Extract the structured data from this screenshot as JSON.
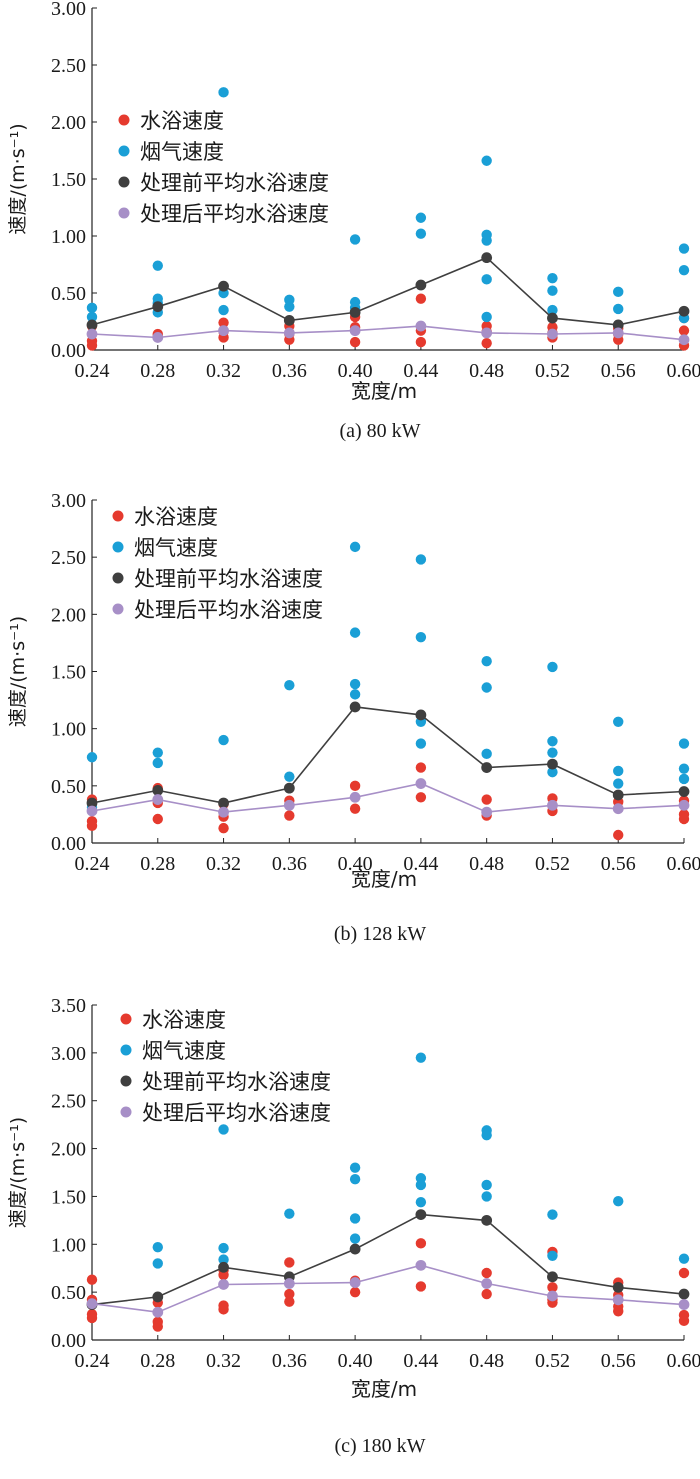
{
  "chart_data": [
    {
      "type": "scatter",
      "caption": "(a) 80 kW",
      "xlabel": "宽度/m",
      "ylabel": "速度/(m·s⁻¹)",
      "ylim": [
        0,
        3.0
      ],
      "y_ticks": [
        "0.00",
        "0.50",
        "1.00",
        "1.50",
        "2.00",
        "2.50",
        "3.00"
      ],
      "x_ticks": [
        "0.24",
        "0.28",
        "0.32",
        "0.36",
        "0.40",
        "0.44",
        "0.48",
        "0.52",
        "0.56",
        "0.60"
      ],
      "legend_placement": "top-left",
      "series": [
        {
          "name": "水浴速度",
          "kind": "scatter",
          "color": "#e53a2e",
          "points": [
            [
              0.24,
              0.21
            ],
            [
              0.24,
              0.08
            ],
            [
              0.24,
              0.04
            ],
            [
              0.28,
              0.14
            ],
            [
              0.28,
              0.12
            ],
            [
              0.32,
              0.24
            ],
            [
              0.32,
              0.16
            ],
            [
              0.32,
              0.11
            ],
            [
              0.36,
              0.21
            ],
            [
              0.36,
              0.14
            ],
            [
              0.36,
              0.09
            ],
            [
              0.4,
              0.29
            ],
            [
              0.4,
              0.2
            ],
            [
              0.4,
              0.07
            ],
            [
              0.44,
              0.45
            ],
            [
              0.44,
              0.17
            ],
            [
              0.44,
              0.07
            ],
            [
              0.48,
              0.21
            ],
            [
              0.48,
              0.16
            ],
            [
              0.48,
              0.06
            ],
            [
              0.52,
              0.2
            ],
            [
              0.52,
              0.15
            ],
            [
              0.52,
              0.11
            ],
            [
              0.56,
              0.19
            ],
            [
              0.56,
              0.14
            ],
            [
              0.56,
              0.09
            ],
            [
              0.6,
              0.28
            ],
            [
              0.6,
              0.17
            ],
            [
              0.6,
              0.04
            ]
          ]
        },
        {
          "name": "烟气速度",
          "kind": "scatter",
          "color": "#1a9fd6",
          "points": [
            [
              0.24,
              0.37
            ],
            [
              0.24,
              0.29
            ],
            [
              0.28,
              0.74
            ],
            [
              0.28,
              0.45
            ],
            [
              0.28,
              0.41
            ],
            [
              0.28,
              0.33
            ],
            [
              0.32,
              2.26
            ],
            [
              0.32,
              0.5
            ],
            [
              0.32,
              0.35
            ],
            [
              0.36,
              0.44
            ],
            [
              0.36,
              0.38
            ],
            [
              0.4,
              0.97
            ],
            [
              0.4,
              0.42
            ],
            [
              0.4,
              0.37
            ],
            [
              0.44,
              1.16
            ],
            [
              0.44,
              1.02
            ],
            [
              0.48,
              1.66
            ],
            [
              0.48,
              1.01
            ],
            [
              0.48,
              0.96
            ],
            [
              0.48,
              0.62
            ],
            [
              0.48,
              0.29
            ],
            [
              0.52,
              0.63
            ],
            [
              0.52,
              0.52
            ],
            [
              0.52,
              0.35
            ],
            [
              0.56,
              0.51
            ],
            [
              0.56,
              0.36
            ],
            [
              0.6,
              0.89
            ],
            [
              0.6,
              0.7
            ],
            [
              0.6,
              0.28
            ]
          ]
        },
        {
          "name": "处理前平均水浴速度",
          "kind": "line",
          "color": "#3f3f3f",
          "points": [
            [
              0.24,
              0.22
            ],
            [
              0.28,
              0.38
            ],
            [
              0.32,
              0.56
            ],
            [
              0.36,
              0.26
            ],
            [
              0.4,
              0.33
            ],
            [
              0.44,
              0.57
            ],
            [
              0.48,
              0.81
            ],
            [
              0.52,
              0.28
            ],
            [
              0.56,
              0.22
            ],
            [
              0.6,
              0.34
            ]
          ]
        },
        {
          "name": "处理后平均水浴速度",
          "kind": "line",
          "color": "#a78fc7",
          "points": [
            [
              0.24,
              0.14
            ],
            [
              0.28,
              0.11
            ],
            [
              0.32,
              0.17
            ],
            [
              0.36,
              0.15
            ],
            [
              0.4,
              0.17
            ],
            [
              0.44,
              0.21
            ],
            [
              0.48,
              0.15
            ],
            [
              0.52,
              0.14
            ],
            [
              0.56,
              0.15
            ],
            [
              0.6,
              0.09
            ]
          ]
        }
      ]
    },
    {
      "type": "scatter",
      "caption": "(b) 128 kW",
      "xlabel": "宽度/m",
      "ylabel": "速度/(m·s⁻¹)",
      "ylim": [
        0,
        3.0
      ],
      "y_ticks": [
        "0.00",
        "0.50",
        "1.00",
        "1.50",
        "2.00",
        "2.50",
        "3.00"
      ],
      "x_ticks": [
        "0.24",
        "0.28",
        "0.32",
        "0.36",
        "0.40",
        "0.44",
        "0.48",
        "0.52",
        "0.56",
        "0.60"
      ],
      "legend_placement": "top-left",
      "series": [
        {
          "name": "水浴速度",
          "kind": "scatter",
          "color": "#e53a2e",
          "points": [
            [
              0.24,
              0.38
            ],
            [
              0.24,
              0.19
            ],
            [
              0.24,
              0.15
            ],
            [
              0.28,
              0.48
            ],
            [
              0.28,
              0.35
            ],
            [
              0.28,
              0.21
            ],
            [
              0.32,
              0.34
            ],
            [
              0.32,
              0.23
            ],
            [
              0.32,
              0.13
            ],
            [
              0.36,
              0.37
            ],
            [
              0.36,
              0.33
            ],
            [
              0.36,
              0.24
            ],
            [
              0.4,
              0.5
            ],
            [
              0.4,
              0.3
            ],
            [
              0.44,
              0.66
            ],
            [
              0.44,
              0.4
            ],
            [
              0.48,
              0.38
            ],
            [
              0.48,
              0.24
            ],
            [
              0.52,
              0.39
            ],
            [
              0.52,
              0.28
            ],
            [
              0.56,
              0.36
            ],
            [
              0.56,
              0.3
            ],
            [
              0.56,
              0.07
            ],
            [
              0.6,
              0.37
            ],
            [
              0.6,
              0.25
            ],
            [
              0.6,
              0.21
            ]
          ]
        },
        {
          "name": "烟气速度",
          "kind": "scatter",
          "color": "#1a9fd6",
          "points": [
            [
              0.24,
              0.75
            ],
            [
              0.24,
              0.31
            ],
            [
              0.28,
              0.79
            ],
            [
              0.28,
              0.7
            ],
            [
              0.32,
              0.9
            ],
            [
              0.32,
              0.27
            ],
            [
              0.36,
              1.38
            ],
            [
              0.36,
              0.58
            ],
            [
              0.4,
              2.59
            ],
            [
              0.4,
              1.84
            ],
            [
              0.4,
              1.39
            ],
            [
              0.4,
              1.3
            ],
            [
              0.44,
              2.48
            ],
            [
              0.44,
              1.8
            ],
            [
              0.44,
              1.06
            ],
            [
              0.44,
              0.87
            ],
            [
              0.48,
              1.59
            ],
            [
              0.48,
              1.36
            ],
            [
              0.48,
              0.78
            ],
            [
              0.52,
              1.54
            ],
            [
              0.52,
              0.89
            ],
            [
              0.52,
              0.79
            ],
            [
              0.52,
              0.62
            ],
            [
              0.56,
              1.06
            ],
            [
              0.56,
              0.63
            ],
            [
              0.56,
              0.52
            ],
            [
              0.6,
              0.87
            ],
            [
              0.6,
              0.65
            ],
            [
              0.6,
              0.56
            ]
          ]
        },
        {
          "name": "处理前平均水浴速度",
          "kind": "line",
          "color": "#3f3f3f",
          "points": [
            [
              0.24,
              0.35
            ],
            [
              0.28,
              0.46
            ],
            [
              0.32,
              0.35
            ],
            [
              0.36,
              0.48
            ],
            [
              0.4,
              1.19
            ],
            [
              0.44,
              1.12
            ],
            [
              0.48,
              0.66
            ],
            [
              0.52,
              0.69
            ],
            [
              0.56,
              0.42
            ],
            [
              0.6,
              0.45
            ]
          ]
        },
        {
          "name": "处理后平均水浴速度",
          "kind": "line",
          "color": "#a78fc7",
          "points": [
            [
              0.24,
              0.28
            ],
            [
              0.28,
              0.38
            ],
            [
              0.32,
              0.27
            ],
            [
              0.36,
              0.33
            ],
            [
              0.4,
              0.4
            ],
            [
              0.44,
              0.52
            ],
            [
              0.48,
              0.27
            ],
            [
              0.52,
              0.33
            ],
            [
              0.56,
              0.3
            ],
            [
              0.6,
              0.33
            ]
          ]
        }
      ]
    },
    {
      "type": "scatter",
      "caption": "(c) 180 kW",
      "xlabel": "宽度/m",
      "ylabel": "速度/(m·s⁻¹)",
      "ylim": [
        0,
        3.5
      ],
      "y_ticks": [
        "0.00",
        "0.50",
        "1.00",
        "1.50",
        "2.00",
        "2.50",
        "3.00",
        "3.50"
      ],
      "x_ticks": [
        "0.24",
        "0.28",
        "0.32",
        "0.36",
        "0.40",
        "0.44",
        "0.48",
        "0.52",
        "0.56",
        "0.60"
      ],
      "legend_placement": "top-left",
      "series": [
        {
          "name": "水浴速度",
          "kind": "scatter",
          "color": "#e53a2e",
          "points": [
            [
              0.24,
              0.63
            ],
            [
              0.24,
              0.42
            ],
            [
              0.24,
              0.27
            ],
            [
              0.24,
              0.23
            ],
            [
              0.28,
              0.39
            ],
            [
              0.28,
              0.19
            ],
            [
              0.28,
              0.14
            ],
            [
              0.32,
              0.73
            ],
            [
              0.32,
              0.68
            ],
            [
              0.32,
              0.36
            ],
            [
              0.32,
              0.32
            ],
            [
              0.36,
              0.81
            ],
            [
              0.36,
              0.48
            ],
            [
              0.36,
              0.4
            ],
            [
              0.4,
              0.62
            ],
            [
              0.4,
              0.5
            ],
            [
              0.44,
              1.01
            ],
            [
              0.44,
              0.56
            ],
            [
              0.48,
              0.7
            ],
            [
              0.48,
              0.48
            ],
            [
              0.52,
              0.92
            ],
            [
              0.52,
              0.55
            ],
            [
              0.52,
              0.42
            ],
            [
              0.52,
              0.39
            ],
            [
              0.56,
              0.6
            ],
            [
              0.56,
              0.47
            ],
            [
              0.56,
              0.35
            ],
            [
              0.56,
              0.3
            ],
            [
              0.6,
              0.7
            ],
            [
              0.6,
              0.26
            ],
            [
              0.6,
              0.2
            ]
          ]
        },
        {
          "name": "烟气速度",
          "kind": "scatter",
          "color": "#1a9fd6",
          "points": [
            [
              0.28,
              0.97
            ],
            [
              0.28,
              0.8
            ],
            [
              0.32,
              2.2
            ],
            [
              0.32,
              0.96
            ],
            [
              0.32,
              0.84
            ],
            [
              0.36,
              1.32
            ],
            [
              0.4,
              1.8
            ],
            [
              0.4,
              1.68
            ],
            [
              0.4,
              1.27
            ],
            [
              0.4,
              1.06
            ],
            [
              0.44,
              2.95
            ],
            [
              0.44,
              1.69
            ],
            [
              0.44,
              1.62
            ],
            [
              0.44,
              1.44
            ],
            [
              0.48,
              2.19
            ],
            [
              0.48,
              2.14
            ],
            [
              0.48,
              1.62
            ],
            [
              0.48,
              1.5
            ],
            [
              0.52,
              1.31
            ],
            [
              0.52,
              0.88
            ],
            [
              0.56,
              1.45
            ],
            [
              0.6,
              0.85
            ]
          ]
        },
        {
          "name": "处理前平均水浴速度",
          "kind": "line",
          "color": "#3f3f3f",
          "points": [
            [
              0.24,
              0.37
            ],
            [
              0.28,
              0.45
            ],
            [
              0.32,
              0.76
            ],
            [
              0.36,
              0.66
            ],
            [
              0.4,
              0.95
            ],
            [
              0.44,
              1.31
            ],
            [
              0.48,
              1.25
            ],
            [
              0.52,
              0.66
            ],
            [
              0.56,
              0.55
            ],
            [
              0.6,
              0.48
            ]
          ]
        },
        {
          "name": "处理后平均水浴速度",
          "kind": "line",
          "color": "#a78fc7",
          "points": [
            [
              0.24,
              0.38
            ],
            [
              0.28,
              0.29
            ],
            [
              0.32,
              0.58
            ],
            [
              0.36,
              0.59
            ],
            [
              0.4,
              0.6
            ],
            [
              0.44,
              0.78
            ],
            [
              0.48,
              0.59
            ],
            [
              0.52,
              0.46
            ],
            [
              0.56,
              0.42
            ],
            [
              0.6,
              0.37
            ]
          ]
        }
      ]
    }
  ]
}
